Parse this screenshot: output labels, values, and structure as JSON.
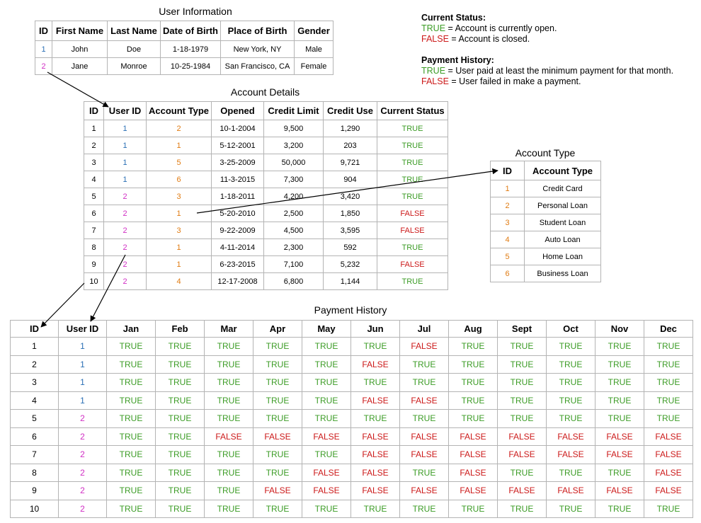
{
  "user_information": {
    "title": "User Information",
    "headers": [
      "ID",
      "First Name",
      "Last Name",
      "Date of Birth",
      "Place of Birth",
      "Gender"
    ],
    "rows": [
      [
        "1",
        "John",
        "Doe",
        "1-18-1979",
        "New York, NY",
        "Male"
      ],
      [
        "2",
        "Jane",
        "Monroe",
        "10-25-1984",
        "San Francisco, CA",
        "Female"
      ]
    ]
  },
  "account_details": {
    "title": "Account Details",
    "headers": [
      "ID",
      "User ID",
      "Account Type",
      "Opened",
      "Credit Limit",
      "Credit Use",
      "Current Status"
    ],
    "rows": [
      [
        "1",
        "1",
        "2",
        "10-1-2004",
        "9,500",
        "1,290",
        "TRUE"
      ],
      [
        "2",
        "1",
        "1",
        "5-12-2001",
        "3,200",
        "203",
        "TRUE"
      ],
      [
        "3",
        "1",
        "5",
        "3-25-2009",
        "50,000",
        "9,721",
        "TRUE"
      ],
      [
        "4",
        "1",
        "6",
        "11-3-2015",
        "7,300",
        "904",
        "TRUE"
      ],
      [
        "5",
        "2",
        "3",
        "1-18-2011",
        "4,200",
        "3,420",
        "TRUE"
      ],
      [
        "6",
        "2",
        "1",
        "5-20-2010",
        "2,500",
        "1,850",
        "FALSE"
      ],
      [
        "7",
        "2",
        "3",
        "9-22-2009",
        "4,500",
        "3,595",
        "FALSE"
      ],
      [
        "8",
        "2",
        "1",
        "4-11-2014",
        "2,300",
        "592",
        "TRUE"
      ],
      [
        "9",
        "2",
        "1",
        "6-23-2015",
        "7,100",
        "5,232",
        "FALSE"
      ],
      [
        "10",
        "2",
        "4",
        "12-17-2008",
        "6,800",
        "1,144",
        "TRUE"
      ]
    ]
  },
  "account_type": {
    "title": "Account Type",
    "headers": [
      "ID",
      "Account Type"
    ],
    "rows": [
      [
        "1",
        "Credit Card"
      ],
      [
        "2",
        "Personal Loan"
      ],
      [
        "3",
        "Student Loan"
      ],
      [
        "4",
        "Auto Loan"
      ],
      [
        "5",
        "Home Loan"
      ],
      [
        "6",
        "Business Loan"
      ]
    ]
  },
  "legend": {
    "current_status_heading": "Current Status:",
    "cs_true_word": "TRUE",
    "cs_true_text": " = Account is currently open.",
    "cs_false_word": "FALSE",
    "cs_false_text": " = Account is closed.",
    "payment_history_heading": "Payment History:",
    "ph_true_word": "TRUE",
    "ph_true_text": " = User paid at least the minimum payment for that month.",
    "ph_false_word": "FALSE",
    "ph_false_text": " = User failed in make a payment."
  },
  "payment_history": {
    "title": "Payment History",
    "headers": [
      "ID",
      "User ID",
      "Jan",
      "Feb",
      "Mar",
      "Apr",
      "May",
      "Jun",
      "Jul",
      "Aug",
      "Sept",
      "Oct",
      "Nov",
      "Dec"
    ],
    "rows": [
      [
        "1",
        "1",
        "TRUE",
        "TRUE",
        "TRUE",
        "TRUE",
        "TRUE",
        "TRUE",
        "FALSE",
        "TRUE",
        "TRUE",
        "TRUE",
        "TRUE",
        "TRUE"
      ],
      [
        "2",
        "1",
        "TRUE",
        "TRUE",
        "TRUE",
        "TRUE",
        "TRUE",
        "FALSE",
        "TRUE",
        "TRUE",
        "TRUE",
        "TRUE",
        "TRUE",
        "TRUE"
      ],
      [
        "3",
        "1",
        "TRUE",
        "TRUE",
        "TRUE",
        "TRUE",
        "TRUE",
        "TRUE",
        "TRUE",
        "TRUE",
        "TRUE",
        "TRUE",
        "TRUE",
        "TRUE"
      ],
      [
        "4",
        "1",
        "TRUE",
        "TRUE",
        "TRUE",
        "TRUE",
        "TRUE",
        "FALSE",
        "FALSE",
        "TRUE",
        "TRUE",
        "TRUE",
        "TRUE",
        "TRUE"
      ],
      [
        "5",
        "2",
        "TRUE",
        "TRUE",
        "TRUE",
        "TRUE",
        "TRUE",
        "TRUE",
        "TRUE",
        "TRUE",
        "TRUE",
        "TRUE",
        "TRUE",
        "TRUE"
      ],
      [
        "6",
        "2",
        "TRUE",
        "TRUE",
        "FALSE",
        "FALSE",
        "FALSE",
        "FALSE",
        "FALSE",
        "FALSE",
        "FALSE",
        "FALSE",
        "FALSE",
        "FALSE"
      ],
      [
        "7",
        "2",
        "TRUE",
        "TRUE",
        "TRUE",
        "TRUE",
        "TRUE",
        "FALSE",
        "FALSE",
        "FALSE",
        "FALSE",
        "FALSE",
        "FALSE",
        "FALSE"
      ],
      [
        "8",
        "2",
        "TRUE",
        "TRUE",
        "TRUE",
        "TRUE",
        "FALSE",
        "FALSE",
        "TRUE",
        "FALSE",
        "TRUE",
        "TRUE",
        "TRUE",
        "FALSE"
      ],
      [
        "9",
        "2",
        "TRUE",
        "TRUE",
        "TRUE",
        "FALSE",
        "FALSE",
        "FALSE",
        "FALSE",
        "FALSE",
        "FALSE",
        "FALSE",
        "FALSE",
        "FALSE"
      ],
      [
        "10",
        "2",
        "TRUE",
        "TRUE",
        "TRUE",
        "TRUE",
        "TRUE",
        "TRUE",
        "TRUE",
        "TRUE",
        "TRUE",
        "TRUE",
        "TRUE",
        "TRUE"
      ]
    ]
  },
  "colors": {
    "true": "#3c9c26",
    "false": "#cc1a1a",
    "user_1": "#2a6fb5",
    "user_2": "#d12fc4",
    "account_type_id": "#e07b12"
  }
}
